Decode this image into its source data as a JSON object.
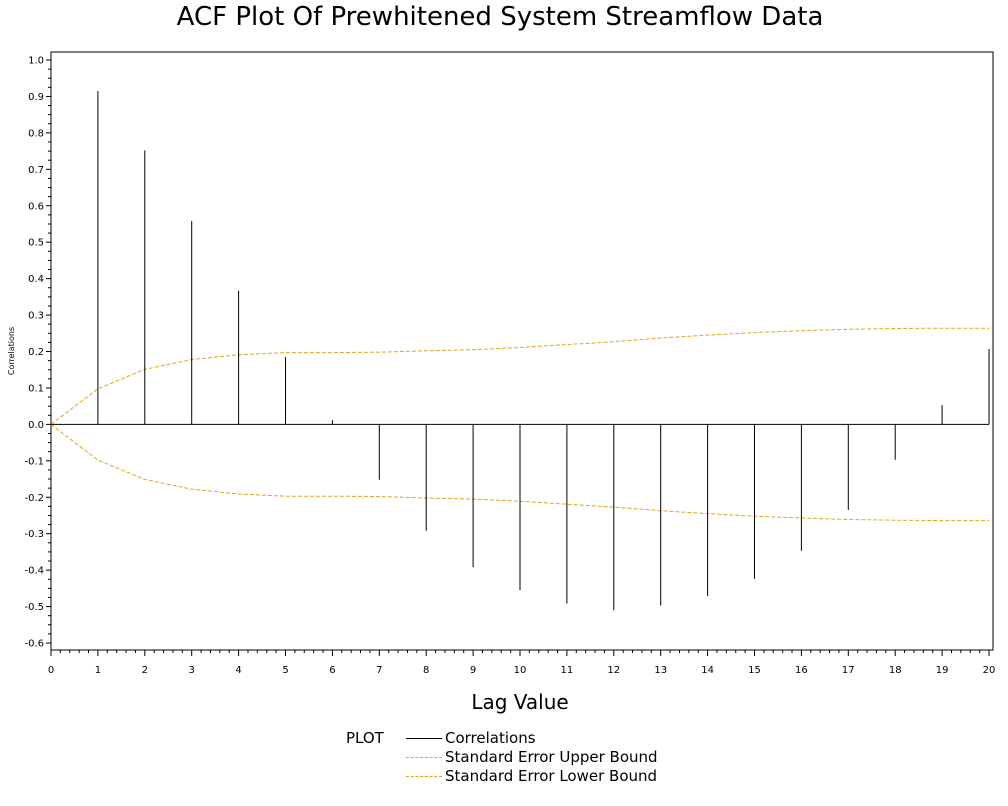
{
  "chart_data": {
    "type": "bar",
    "title": "ACF Plot Of Prewhitened System Streamflow Data",
    "xlabel": "Lag Value",
    "ylabel": "Correlations",
    "xlim": [
      0,
      20
    ],
    "ylim": [
      -0.6,
      1.0
    ],
    "x_ticks": [
      "0",
      "1",
      "2",
      "3",
      "4",
      "5",
      "6",
      "7",
      "8",
      "9",
      "10",
      "11",
      "12",
      "13",
      "14",
      "15",
      "16",
      "17",
      "18",
      "19",
      "20"
    ],
    "y_ticks": [
      "1.0",
      "0.9",
      "0.8",
      "0.7",
      "0.6",
      "0.5",
      "0.4",
      "0.3",
      "0.2",
      "0.1",
      "0.0",
      "-0.1",
      "-0.2",
      "-0.3",
      "-0.4",
      "-0.5",
      "-0.6"
    ],
    "y_tick_values": [
      1.0,
      0.9,
      0.8,
      0.7,
      0.6,
      0.5,
      0.4,
      0.3,
      0.2,
      0.1,
      0.0,
      -0.1,
      -0.2,
      -0.3,
      -0.4,
      -0.5,
      -0.6
    ],
    "series": [
      {
        "name": "Correlations",
        "style": "needle",
        "color": "#000000",
        "x": [
          1,
          2,
          3,
          4,
          5,
          6,
          7,
          8,
          9,
          10,
          11,
          12,
          13,
          14,
          15,
          16,
          17,
          18,
          19,
          20
        ],
        "values": [
          0.915,
          0.752,
          0.558,
          0.367,
          0.185,
          0.012,
          -0.152,
          -0.292,
          -0.392,
          -0.455,
          -0.492,
          -0.51,
          -0.497,
          -0.471,
          -0.424,
          -0.347,
          -0.235,
          -0.097,
          0.053,
          0.207
        ]
      },
      {
        "name": "Standard Error Upper Bound",
        "style": "dashed-line",
        "color": "#E8A21A",
        "x": [
          0,
          1,
          2,
          3,
          4,
          5,
          6,
          7,
          8,
          9,
          10,
          11,
          12,
          13,
          14,
          15,
          16,
          17,
          18,
          19,
          20
        ],
        "values": [
          0.0,
          0.098,
          0.151,
          0.178,
          0.191,
          0.197,
          0.197,
          0.198,
          0.202,
          0.205,
          0.211,
          0.219,
          0.227,
          0.237,
          0.245,
          0.252,
          0.257,
          0.261,
          0.263,
          0.264,
          0.264
        ]
      },
      {
        "name": "Standard Error Lower Bound",
        "style": "dashed-line",
        "color": "#E8A21A",
        "x": [
          0,
          1,
          2,
          3,
          4,
          5,
          6,
          7,
          8,
          9,
          10,
          11,
          12,
          13,
          14,
          15,
          16,
          17,
          18,
          19,
          20
        ],
        "values": [
          0.0,
          -0.098,
          -0.151,
          -0.178,
          -0.191,
          -0.197,
          -0.197,
          -0.198,
          -0.202,
          -0.205,
          -0.211,
          -0.219,
          -0.227,
          -0.237,
          -0.245,
          -0.252,
          -0.257,
          -0.261,
          -0.263,
          -0.264,
          -0.264
        ]
      }
    ],
    "legend": {
      "title": "PLOT",
      "placement": "bottom",
      "entries": [
        "Correlations",
        "Standard Error Upper Bound",
        "Standard Error Lower Bound"
      ]
    },
    "grid": false
  }
}
